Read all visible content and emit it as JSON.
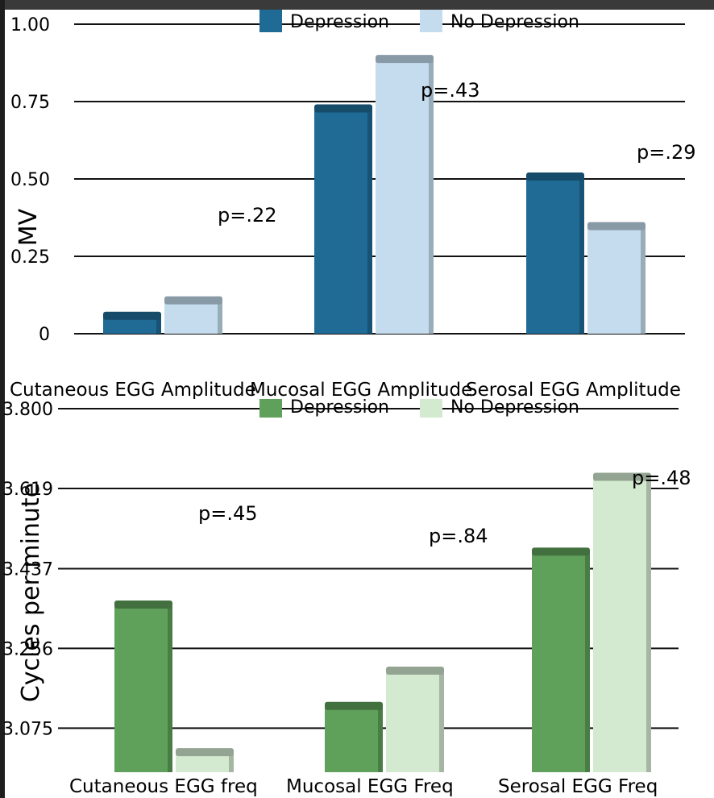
{
  "charts": {
    "amplitude": {
      "ylabel": "MV",
      "p_labels": [
        "p=.22",
        "p=.43",
        "p=.29"
      ]
    },
    "frequency": {
      "ylabel": "Cycles per minute",
      "p_labels": [
        "p=.45",
        "p=.84",
        "p=.48"
      ]
    }
  },
  "chart_data": [
    {
      "type": "bar",
      "categories": [
        "Cutaneous EGG Amplitude",
        "Mucosal EGG Amplitude",
        "Serosal EGG Amplitude"
      ],
      "series": [
        {
          "name": "Depression",
          "values": [
            0.05,
            0.72,
            0.5
          ],
          "color": "#1f6b96"
        },
        {
          "name": "No Depression",
          "values": [
            0.1,
            0.88,
            0.34
          ],
          "color": "#c4dcee"
        }
      ],
      "ylabel": "MV",
      "ylim": [
        0,
        1.0
      ],
      "yticks": [
        {
          "value": 0,
          "label": "0"
        },
        {
          "value": 0.25,
          "label": "0.25"
        },
        {
          "value": 0.5,
          "label": "0.50"
        },
        {
          "value": 0.75,
          "label": "0.75"
        },
        {
          "value": 1.0,
          "label": "1.00"
        }
      ],
      "grid": true,
      "legend": "top"
    },
    {
      "type": "bar",
      "categories": [
        "Cutaneous EGG freq",
        "Mucosal EGG Freq",
        "Serosal EGG Freq"
      ],
      "series": [
        {
          "name": "Depression",
          "values": [
            3.35,
            3.12,
            3.47
          ],
          "color": "#5fa05a"
        },
        {
          "name": "No Depression",
          "values": [
            3.015,
            3.2,
            3.64
          ],
          "color": "#d4ead0"
        }
      ],
      "ylabel": "Cycles per minute",
      "ylim": [
        2.975,
        3.8
      ],
      "yticks": [
        {
          "value": 3.075,
          "label": "3.075"
        },
        {
          "value": 3.256,
          "label": "3.256"
        },
        {
          "value": 3.437,
          "label": "3.437"
        },
        {
          "value": 3.619,
          "label": "3.619"
        },
        {
          "value": 3.8,
          "label": "3.800"
        }
      ],
      "grid": true,
      "legend": "top"
    }
  ]
}
